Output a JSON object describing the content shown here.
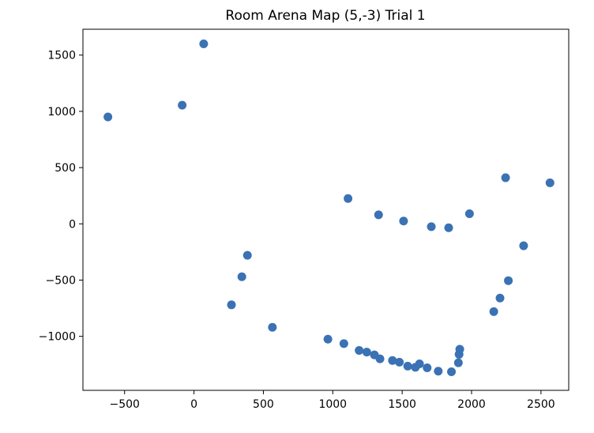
{
  "chart_data": {
    "type": "scatter",
    "title": "Room Arena Map (5,-3) Trial 1",
    "xlabel": "",
    "ylabel": "",
    "xlim": [
      -800,
      2700
    ],
    "ylim": [
      -1480,
      1730
    ],
    "xticks": [
      -500,
      0,
      500,
      1000,
      1500,
      2000,
      2500
    ],
    "yticks": [
      -1000,
      -500,
      0,
      500,
      1000,
      1500
    ],
    "grid": false,
    "color": "#3a72b4",
    "series": [
      {
        "points": [
          {
            "x": -620,
            "y": 950
          },
          {
            "x": -85,
            "y": 1055
          },
          {
            "x": 70,
            "y": 1600
          },
          {
            "x": 270,
            "y": -720
          },
          {
            "x": 345,
            "y": -470
          },
          {
            "x": 385,
            "y": -280
          },
          {
            "x": 565,
            "y": -920
          },
          {
            "x": 965,
            "y": -1025
          },
          {
            "x": 1080,
            "y": -1065
          },
          {
            "x": 1110,
            "y": 225
          },
          {
            "x": 1190,
            "y": -1125
          },
          {
            "x": 1245,
            "y": -1140
          },
          {
            "x": 1300,
            "y": -1165
          },
          {
            "x": 1330,
            "y": 80
          },
          {
            "x": 1340,
            "y": -1200
          },
          {
            "x": 1430,
            "y": -1215
          },
          {
            "x": 1480,
            "y": -1230
          },
          {
            "x": 1510,
            "y": 25
          },
          {
            "x": 1540,
            "y": -1265
          },
          {
            "x": 1595,
            "y": -1275
          },
          {
            "x": 1625,
            "y": -1245
          },
          {
            "x": 1680,
            "y": -1280
          },
          {
            "x": 1710,
            "y": -25
          },
          {
            "x": 1760,
            "y": -1310
          },
          {
            "x": 1835,
            "y": -35
          },
          {
            "x": 1855,
            "y": -1315
          },
          {
            "x": 1905,
            "y": -1235
          },
          {
            "x": 1910,
            "y": -1160
          },
          {
            "x": 1915,
            "y": -1115
          },
          {
            "x": 1985,
            "y": 90
          },
          {
            "x": 2160,
            "y": -780
          },
          {
            "x": 2205,
            "y": -660
          },
          {
            "x": 2245,
            "y": 410
          },
          {
            "x": 2265,
            "y": -505
          },
          {
            "x": 2375,
            "y": -195
          },
          {
            "x": 2565,
            "y": 365
          }
        ]
      }
    ]
  }
}
